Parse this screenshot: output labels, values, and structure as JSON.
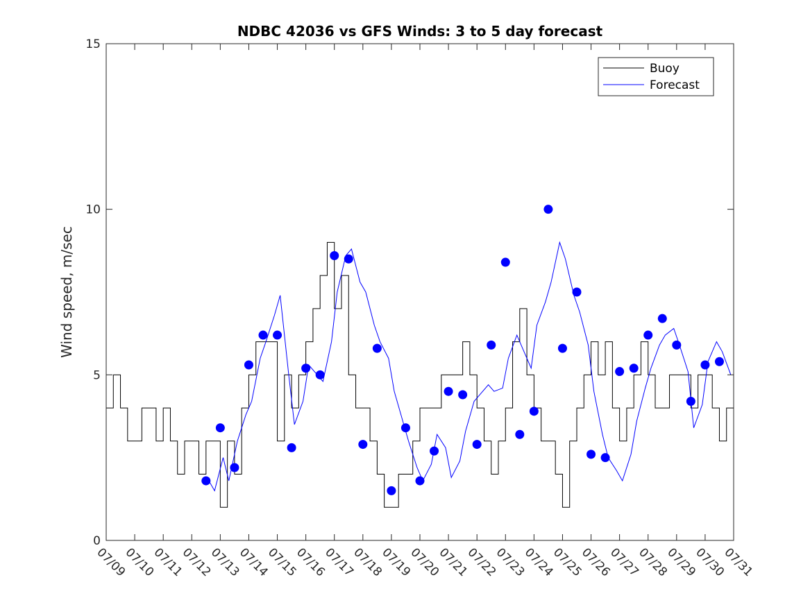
{
  "chart_data": {
    "type": "line",
    "title": "NDBC 42036 vs GFS Winds: 3 to 5 day forecast",
    "xlabel": "",
    "ylabel": "Wind speed, m/sec",
    "x_unit": "day (0 = 07/09 00:00)",
    "xlim": [
      0,
      22
    ],
    "ylim": [
      0,
      15
    ],
    "yticks": [
      0,
      5,
      10,
      15
    ],
    "xtick_labels": [
      "07/09",
      "07/10",
      "07/11",
      "07/12",
      "07/13",
      "07/14",
      "07/15",
      "07/16",
      "07/17",
      "07/18",
      "07/19",
      "07/20",
      "07/21",
      "07/22",
      "07/23",
      "07/24",
      "07/25",
      "07/26",
      "07/27",
      "07/28",
      "07/29",
      "07/30",
      "07/31"
    ],
    "grid": false,
    "legend": {
      "position": "top-right",
      "entries": [
        "Buoy",
        "Forecast"
      ]
    },
    "colors": {
      "buoy": "#000000",
      "forecast": "#0000ff"
    },
    "series": [
      {
        "name": "Buoy",
        "style": "stairs",
        "x": [
          0.0,
          0.25,
          0.5,
          0.75,
          1.0,
          1.25,
          1.5,
          1.75,
          2.0,
          2.25,
          2.5,
          2.75,
          3.0,
          3.25,
          3.5,
          3.75,
          4.0,
          4.25,
          4.5,
          4.75,
          5.0,
          5.25,
          5.5,
          5.75,
          6.0,
          6.25,
          6.5,
          6.75,
          7.0,
          7.25,
          7.5,
          7.75,
          8.0,
          8.25,
          8.5,
          8.75,
          9.0,
          9.25,
          9.5,
          9.75,
          10.0,
          10.25,
          10.5,
          10.75,
          11.0,
          11.25,
          11.5,
          11.75,
          12.0,
          12.25,
          12.5,
          12.75,
          13.0,
          13.25,
          13.5,
          13.75,
          14.0,
          14.25,
          14.5,
          14.75,
          15.0,
          15.25,
          15.5,
          15.75,
          16.0,
          16.25,
          16.5,
          16.75,
          17.0,
          17.25,
          17.5,
          17.75,
          18.0,
          18.25,
          18.5,
          18.75,
          19.0,
          19.25,
          19.5,
          19.75,
          20.0,
          20.25,
          20.5,
          20.75,
          21.0,
          21.25,
          21.5,
          21.75,
          22.0
        ],
        "values": [
          4,
          5,
          4,
          3,
          3,
          4,
          4,
          3,
          4,
          3,
          2,
          3,
          3,
          2,
          3,
          3,
          1,
          3,
          2,
          4,
          5,
          6,
          6,
          6,
          3,
          5,
          4,
          5,
          6,
          7,
          8,
          9,
          7,
          8,
          5,
          4,
          4,
          3,
          2,
          1,
          1,
          2,
          2,
          3,
          4,
          4,
          4,
          5,
          5,
          5,
          6,
          5,
          4,
          3,
          2,
          3,
          4,
          6,
          7,
          5,
          4,
          3,
          3,
          2,
          1,
          3,
          4,
          5,
          6,
          5,
          6,
          4,
          3,
          4,
          5,
          6,
          5,
          4,
          4,
          5,
          5,
          5,
          4,
          5,
          5,
          4,
          3,
          4,
          5
        ]
      },
      {
        "name": "Forecast",
        "style": "line",
        "x": [
          3.6,
          3.8,
          4.1,
          4.3,
          4.6,
          4.9,
          5.1,
          5.4,
          5.6,
          5.9,
          6.1,
          6.4,
          6.6,
          6.9,
          7.1,
          7.4,
          7.6,
          7.9,
          8.1,
          8.4,
          8.6,
          8.9,
          9.1,
          9.4,
          9.6,
          9.9,
          10.1,
          10.4,
          10.6,
          10.9,
          11.1,
          11.4,
          11.6,
          11.9,
          12.1,
          12.4,
          12.6,
          12.9,
          13.1,
          13.4,
          13.6,
          13.9,
          14.1,
          14.4,
          14.6,
          14.9,
          15.1,
          15.4,
          15.6,
          15.9,
          16.1,
          16.4,
          16.6,
          16.9,
          17.1,
          17.4,
          17.6,
          17.9,
          18.1,
          18.4,
          18.6,
          18.9,
          19.1,
          19.4,
          19.6,
          19.9,
          20.1,
          20.4,
          20.6,
          20.9,
          21.1,
          21.4,
          21.6,
          21.9
        ],
        "values": [
          1.8,
          1.5,
          2.5,
          1.8,
          3.0,
          3.8,
          4.2,
          5.5,
          6.0,
          6.8,
          7.4,
          5.0,
          3.5,
          4.2,
          5.3,
          5.0,
          4.8,
          6.0,
          7.5,
          8.6,
          8.8,
          7.8,
          7.5,
          6.5,
          6.0,
          5.5,
          4.5,
          3.6,
          3.0,
          2.2,
          1.8,
          2.3,
          3.2,
          2.8,
          1.9,
          2.4,
          3.3,
          4.2,
          4.4,
          4.7,
          4.5,
          4.6,
          5.5,
          6.2,
          5.8,
          5.2,
          6.5,
          7.2,
          7.8,
          9.0,
          8.5,
          7.4,
          6.9,
          5.9,
          4.5,
          3.2,
          2.5,
          2.1,
          1.8,
          2.6,
          3.6,
          4.6,
          5.2,
          5.9,
          6.2,
          6.4,
          5.9,
          5.1,
          3.4,
          4.1,
          5.4,
          6.0,
          5.7,
          5.0
        ]
      },
      {
        "name": "",
        "style": "markers",
        "x": [
          3.5,
          4.0,
          4.5,
          5.0,
          5.5,
          6.0,
          6.5,
          7.0,
          7.5,
          8.0,
          8.5,
          9.0,
          9.5,
          10.0,
          10.5,
          11.0,
          11.5,
          12.0,
          12.5,
          13.0,
          13.5,
          14.0,
          14.5,
          15.0,
          15.5,
          16.0,
          16.5,
          17.0,
          17.5,
          18.0,
          18.5,
          19.0,
          19.5,
          20.0,
          20.5,
          21.0,
          21.5
        ],
        "values": [
          1.8,
          3.4,
          2.2,
          5.3,
          6.2,
          6.2,
          2.8,
          5.2,
          5.0,
          8.6,
          8.5,
          2.9,
          5.8,
          1.5,
          3.4,
          1.8,
          2.7,
          4.5,
          4.4,
          2.9,
          5.9,
          8.4,
          3.2,
          3.9,
          10.0,
          5.8,
          7.5,
          2.6,
          2.5,
          5.1,
          5.2,
          6.2,
          6.7,
          5.9,
          4.2,
          5.3,
          5.4
        ]
      }
    ]
  }
}
